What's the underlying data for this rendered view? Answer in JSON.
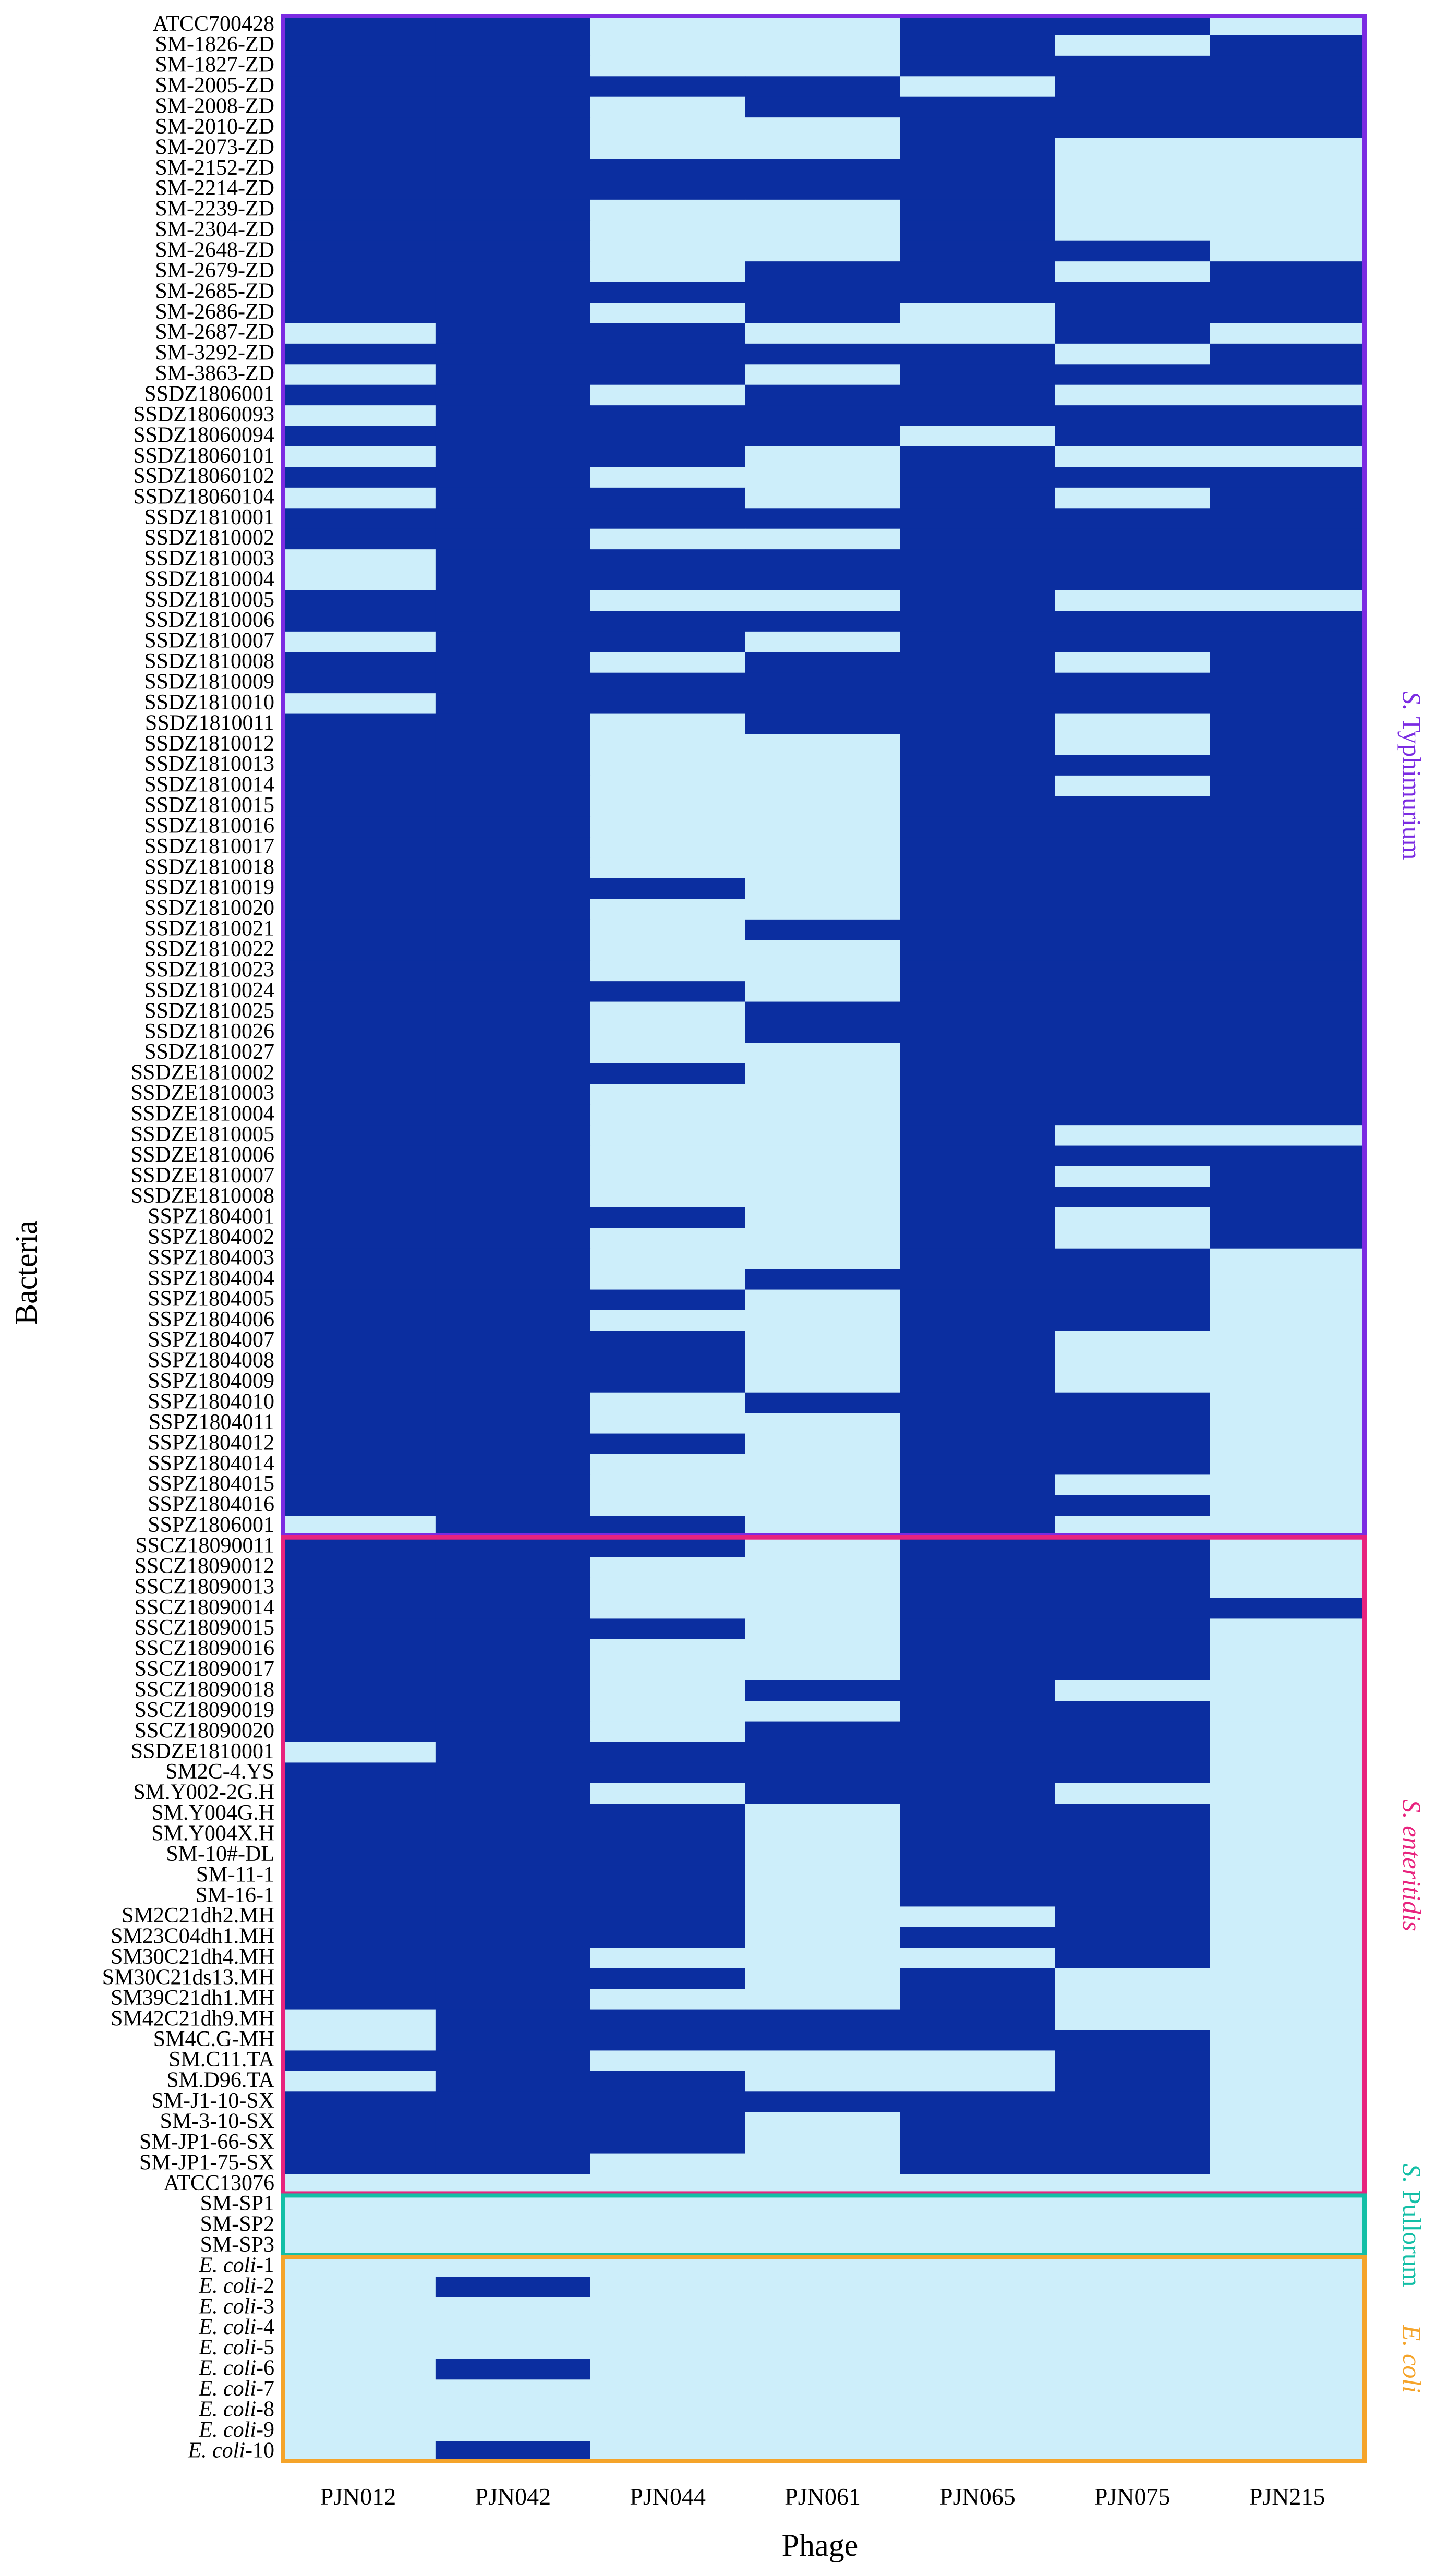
{
  "chart_data": {
    "type": "heatmap",
    "xlabel": "Phage",
    "ylabel": "Bacteria",
    "columns": [
      "PJN012",
      "PJN042",
      "PJN044",
      "PJN061",
      "PJN065",
      "PJN075",
      "PJN215"
    ],
    "rows": [
      "ATCC700428",
      "SM-1826-ZD",
      "SM-1827-ZD",
      "SM-2005-ZD",
      "SM-2008-ZD",
      "SM-2010-ZD",
      "SM-2073-ZD",
      "SM-2152-ZD",
      "SM-2214-ZD",
      "SM-2239-ZD",
      "SM-2304-ZD",
      "SM-2648-ZD",
      "SM-2679-ZD",
      "SM-2685-ZD",
      "SM-2686-ZD",
      "SM-2687-ZD",
      "SM-3292-ZD",
      "SM-3863-ZD",
      "SSDZ1806001",
      "SSDZ18060093",
      "SSDZ18060094",
      "SSDZ18060101",
      "SSDZ18060102",
      "SSDZ18060104",
      "SSDZ1810001",
      "SSDZ1810002",
      "SSDZ1810003",
      "SSDZ1810004",
      "SSDZ1810005",
      "SSDZ1810006",
      "SSDZ1810007",
      "SSDZ1810008",
      "SSDZ1810009",
      "SSDZ1810010",
      "SSDZ1810011",
      "SSDZ1810012",
      "SSDZ1810013",
      "SSDZ1810014",
      "SSDZ1810015",
      "SSDZ1810016",
      "SSDZ1810017",
      "SSDZ1810018",
      "SSDZ1810019",
      "SSDZ1810020",
      "SSDZ1810021",
      "SSDZ1810022",
      "SSDZ1810023",
      "SSDZ1810024",
      "SSDZ1810025",
      "SSDZ1810026",
      "SSDZ1810027",
      "SSDZE1810002",
      "SSDZE1810003",
      "SSDZE1810004",
      "SSDZE1810005",
      "SSDZE1810006",
      "SSDZE1810007",
      "SSDZE1810008",
      "SSPZ1804001",
      "SSPZ1804002",
      "SSPZ1804003",
      "SSPZ1804004",
      "SSPZ1804005",
      "SSPZ1804006",
      "SSPZ1804007",
      "SSPZ1804008",
      "SSPZ1804009",
      "SSPZ1804010",
      "SSPZ1804011",
      "SSPZ1804012",
      "SSPZ1804014",
      "SSPZ1804015",
      "SSPZ1804016",
      "SSPZ1806001",
      "SSCZ18090011",
      "SSCZ18090012",
      "SSCZ18090013",
      "SSCZ18090014",
      "SSCZ18090015",
      "SSCZ18090016",
      "SSCZ18090017",
      "SSCZ18090018",
      "SSCZ18090019",
      "SSCZ18090020",
      "SSDZE1810001",
      "SM2C-4.YS",
      "SM.Y002-2G.H",
      "SM.Y004G.H",
      "SM.Y004X.H",
      "SM-10#-DL",
      "SM-11-1",
      "SM-16-1",
      "SM2C21dh2.MH",
      "SM23C04dh1.MH",
      "SM30C21dh4.MH",
      "SM30C21ds13.MH",
      "SM39C21dh1.MH",
      "SM42C21dh9.MH",
      "SM4C.G-MH",
      "SM.C11.TA",
      "SM.D96.TA",
      "SM-J1-10-SX",
      "SM-3-10-SX",
      "SM-JP1-66-SX",
      "SM-JP1-75-SX",
      "ATCC13076",
      "SM-SP1",
      "SM-SP2",
      "SM-SP3",
      "E. coli-1",
      "E. coli-2",
      "E. coli-3",
      "E. coli-4",
      "E. coli-5",
      "E. coli-6",
      "E. coli-7",
      "E. coli-8",
      "E. coli-9",
      "E. coli-10"
    ],
    "italic_prefix_rows": "E. coli",
    "values": [
      "1100110",
      "1100101",
      "1100111",
      "1111011",
      "1101111",
      "1100111",
      "1100100",
      "1111100",
      "1111100",
      "1100100",
      "1100100",
      "1100110",
      "1101101",
      "1111111",
      "1101011",
      "0110010",
      "1111101",
      "0110111",
      "1101100",
      "0111111",
      "1111011",
      "0110100",
      "1100111",
      "0110101",
      "1111111",
      "1100111",
      "0111111",
      "0111111",
      "1100100",
      "1111111",
      "0110111",
      "1101101",
      "1111111",
      "0111111",
      "1101101",
      "1100101",
      "1100111",
      "1100101",
      "1100111",
      "1100111",
      "1100111",
      "1100111",
      "1110111",
      "1100111",
      "1101111",
      "1100111",
      "1100111",
      "1110111",
      "1101111",
      "1101111",
      "1100111",
      "1110111",
      "1100111",
      "1100111",
      "1100100",
      "1100111",
      "1100101",
      "1100111",
      "1110101",
      "1100101",
      "1100110",
      "1101110",
      "1110110",
      "1100110",
      "1110100",
      "1110100",
      "1110100",
      "1101110",
      "1100110",
      "1110110",
      "1100110",
      "1100100",
      "1100110",
      "0110100",
      "1110110",
      "1100110",
      "1100110",
      "1100111",
      "1110110",
      "1100110",
      "1100110",
      "1101100",
      "1100110",
      "1101110",
      "0111110",
      "1111110",
      "1101100",
      "1110110",
      "1110110",
      "1110110",
      "1110110",
      "1110110",
      "1110010",
      "1110110",
      "1100010",
      "1110100",
      "1100100",
      "0111100",
      "0111110",
      "1100010",
      "0110010",
      "1111110",
      "1110110",
      "1110110",
      "1100110",
      "0000000",
      "0000000",
      "0000000",
      "0000000",
      "0000000",
      "0100000",
      "0000000",
      "0000000",
      "0000000",
      "0100000",
      "0000000",
      "0000000",
      "0000000",
      "0100000"
    ],
    "colors": {
      "lysis": "#0b2ea0",
      "no_lysis": "#cdeefa"
    },
    "groups": [
      {
        "label": "S. Typhimurium",
        "italic": "S.",
        "rest": " Typhimurium",
        "start": 0,
        "end": 73,
        "color": "#7b2be2"
      },
      {
        "label": "S. enteritidis",
        "italic": "S. enteritidis",
        "rest": "",
        "start": 74,
        "end": 105,
        "color": "#e8237e"
      },
      {
        "label": "S. Pullorum",
        "italic": "S.",
        "rest": " Pullorum",
        "start": 106,
        "end": 108,
        "color": "#13bfa6"
      },
      {
        "label": "E. coli",
        "italic": "E. coli",
        "rest": "",
        "start": 109,
        "end": 118,
        "color": "#f5a42a"
      }
    ]
  }
}
